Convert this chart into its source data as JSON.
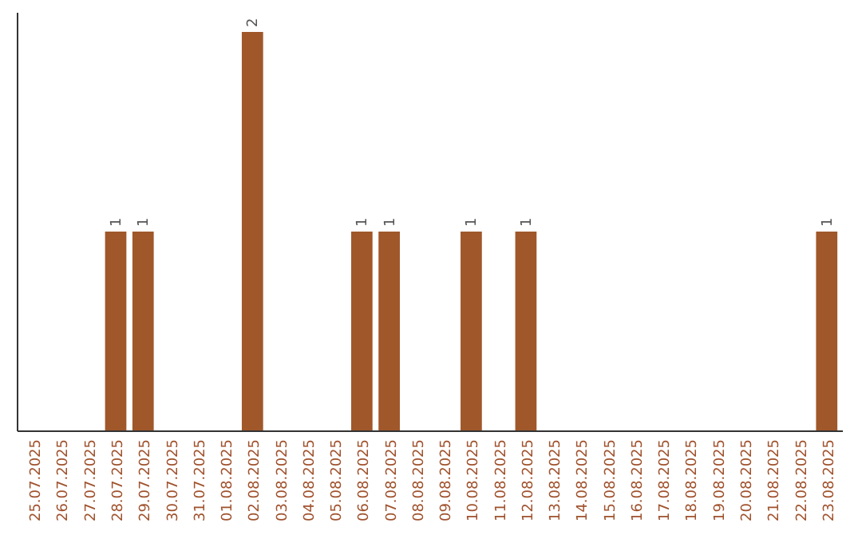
{
  "chart_data": {
    "type": "bar",
    "categories": [
      "25.07.2025",
      "26.07.2025",
      "27.07.2025",
      "28.07.2025",
      "29.07.2025",
      "30.07.2025",
      "31.07.2025",
      "01.08.2025",
      "02.08.2025",
      "03.08.2025",
      "04.08.2025",
      "05.08.2025",
      "06.08.2025",
      "07.08.2025",
      "08.08.2025",
      "09.08.2025",
      "10.08.2025",
      "11.08.2025",
      "12.08.2025",
      "13.08.2025",
      "14.08.2025",
      "15.08.2025",
      "16.08.2025",
      "17.08.2025",
      "18.08.2025",
      "19.08.2025",
      "20.08.2025",
      "21.08.2025",
      "22.08.2025",
      "23.08.2025"
    ],
    "values": [
      0,
      0,
      0,
      1,
      1,
      0,
      0,
      0,
      2,
      0,
      0,
      0,
      1,
      1,
      0,
      0,
      1,
      0,
      1,
      0,
      0,
      0,
      0,
      0,
      0,
      0,
      0,
      0,
      0,
      1
    ],
    "value_labels": [
      null,
      null,
      null,
      "1",
      "1",
      null,
      null,
      null,
      "2",
      null,
      null,
      null,
      "1",
      "1",
      null,
      null,
      "1",
      null,
      "1",
      null,
      null,
      null,
      null,
      null,
      null,
      null,
      null,
      null,
      null,
      "1"
    ],
    "color": "#a0572a"
  }
}
